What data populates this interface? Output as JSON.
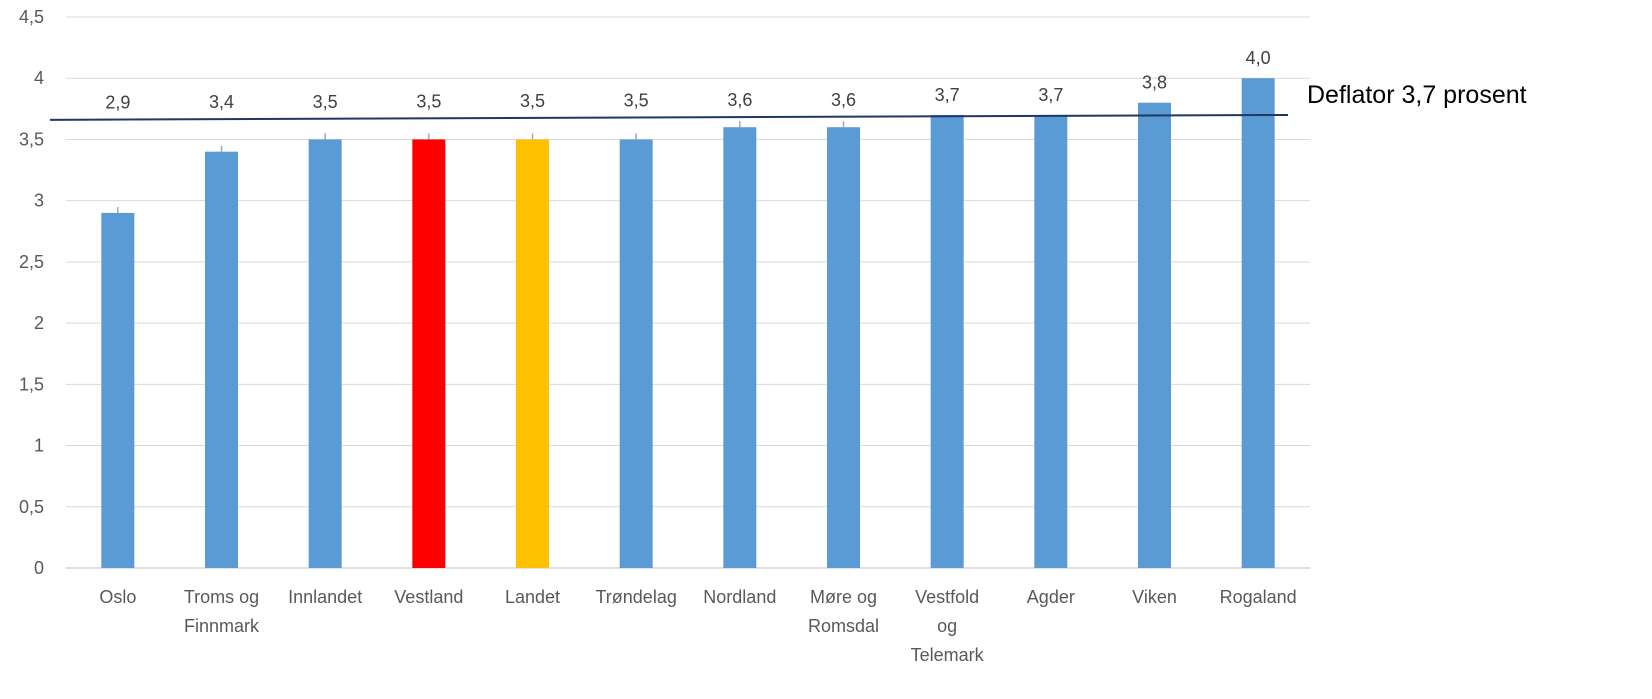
{
  "chart_data": {
    "type": "bar",
    "categories": [
      "Oslo",
      "Troms og Finnmark",
      "Innlandet",
      "Vestland",
      "Landet",
      "Trøndelag",
      "Nordland",
      "Møre og Romsdal",
      "Vestfold og Telemark",
      "Agder",
      "Viken",
      "Rogaland"
    ],
    "category_lines": [
      [
        "Oslo"
      ],
      [
        "Troms og",
        "Finnmark"
      ],
      [
        "Innlandet"
      ],
      [
        "Vestland"
      ],
      [
        "Landet"
      ],
      [
        "Trøndelag"
      ],
      [
        "Nordland"
      ],
      [
        "Møre og",
        "Romsdal"
      ],
      [
        "Vestfold",
        "og",
        "Telemark"
      ],
      [
        "Agder"
      ],
      [
        "Viken"
      ],
      [
        "Rogaland"
      ]
    ],
    "values": [
      2.9,
      3.4,
      3.5,
      3.5,
      3.5,
      3.5,
      3.6,
      3.6,
      3.7,
      3.7,
      3.8,
      4.0
    ],
    "data_labels": [
      "2,9",
      "3,4",
      "3,5",
      "3,5",
      "3,5",
      "3,5",
      "3,6",
      "3,6",
      "3,7",
      "3,7",
      "3,8",
      "4,0"
    ],
    "bar_colors": [
      "#5b9bd5",
      "#5b9bd5",
      "#5b9bd5",
      "#ff0000",
      "#ffc000",
      "#5b9bd5",
      "#5b9bd5",
      "#5b9bd5",
      "#5b9bd5",
      "#5b9bd5",
      "#5b9bd5",
      "#5b9bd5"
    ],
    "ylim": [
      0,
      4.5
    ],
    "yticks": [
      0,
      0.5,
      1,
      1.5,
      2,
      2.5,
      3,
      3.5,
      4,
      4.5
    ],
    "ytick_labels": [
      "0",
      "0,5",
      "1",
      "1,5",
      "2",
      "2,5",
      "3",
      "3,5",
      "4",
      "4,5"
    ],
    "grid": true,
    "title": "",
    "xlabel": "",
    "ylabel": "",
    "reference_line": {
      "label": "Deflator 3,7 prosent",
      "value_start": 3.66,
      "value_end": 3.7,
      "color": "#1f3864"
    }
  }
}
